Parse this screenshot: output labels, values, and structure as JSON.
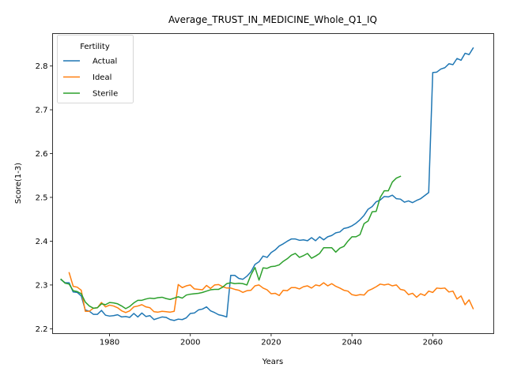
{
  "chart_data": {
    "type": "line",
    "title": "Average_TRUST_IN_MEDICINE_Whole_Q1_IQ",
    "xlabel": "Years",
    "ylabel": "Score(1-3)",
    "xlim": [
      1965.9,
      2075.1
    ],
    "ylim": [
      2.189,
      2.874
    ],
    "xticks": [
      1980,
      2000,
      2020,
      2040,
      2060
    ],
    "yticks": [
      2.2,
      2.3,
      2.4,
      2.5,
      2.6,
      2.7,
      2.8
    ],
    "xtick_labels": [
      "1980",
      "2000",
      "2020",
      "2040",
      "2060"
    ],
    "ytick_labels": [
      "2.2",
      "2.3",
      "2.4",
      "2.5",
      "2.6",
      "2.7",
      "2.8"
    ],
    "grid": false,
    "legend": {
      "title": "Fertility",
      "position": "top-left"
    },
    "series": [
      {
        "name": "Actual",
        "color": "#1f77b4",
        "x": [
          1968,
          1969,
          1970,
          1971,
          1972,
          1973,
          1974,
          1975,
          1976,
          1977,
          1978,
          1979,
          1980,
          1981,
          1982,
          1983,
          1984,
          1985,
          1986,
          1987,
          1988,
          1989,
          1990,
          1991,
          1992,
          1993,
          1994,
          1995,
          1996,
          1997,
          1998,
          1999,
          2000,
          2001,
          2002,
          2003,
          2004,
          2005,
          2006,
          2007,
          2008,
          2009,
          2010,
          2011,
          2012,
          2013,
          2014,
          2015,
          2016,
          2017,
          2018,
          2019,
          2020,
          2021,
          2022,
          2023,
          2024,
          2025,
          2026,
          2027,
          2028,
          2029,
          2030,
          2031,
          2032,
          2033,
          2034,
          2035,
          2036,
          2037,
          2038,
          2039,
          2040,
          2041,
          2042,
          2043,
          2044,
          2045,
          2046,
          2047,
          2048,
          2049,
          2050,
          2051,
          2052,
          2053,
          2054,
          2055,
          2056,
          2057,
          2058,
          2059,
          2060,
          2061,
          2062,
          2063,
          2064,
          2065,
          2066,
          2067,
          2068,
          2069,
          2070
        ],
        "values": [
          2.312,
          2.305,
          2.305,
          2.284,
          2.283,
          2.275,
          2.243,
          2.24,
          2.233,
          2.233,
          2.242,
          2.231,
          2.229,
          2.23,
          2.232,
          2.227,
          2.228,
          2.226,
          2.235,
          2.227,
          2.236,
          2.228,
          2.23,
          2.221,
          2.224,
          2.227,
          2.226,
          2.221,
          2.219,
          2.222,
          2.221,
          2.225,
          2.235,
          2.236,
          2.243,
          2.245,
          2.25,
          2.241,
          2.237,
          2.232,
          2.23,
          2.227,
          2.322,
          2.322,
          2.315,
          2.313,
          2.32,
          2.33,
          2.347,
          2.353,
          2.366,
          2.363,
          2.374,
          2.38,
          2.389,
          2.394,
          2.4,
          2.405,
          2.405,
          2.402,
          2.403,
          2.401,
          2.408,
          2.401,
          2.41,
          2.403,
          2.41,
          2.413,
          2.419,
          2.421,
          2.429,
          2.431,
          2.435,
          2.441,
          2.449,
          2.459,
          2.473,
          2.479,
          2.49,
          2.494,
          2.502,
          2.501,
          2.505,
          2.497,
          2.496,
          2.489,
          2.492,
          2.488,
          2.493,
          2.497,
          2.504,
          2.511,
          2.785,
          2.786,
          2.793,
          2.796,
          2.805,
          2.803,
          2.817,
          2.813,
          2.829,
          2.826,
          2.841
        ]
      },
      {
        "name": "Ideal",
        "color": "#ff7f0e",
        "x": [
          1970,
          1971,
          1972,
          1973,
          1974,
          1975,
          1976,
          1977,
          1978,
          1979,
          1980,
          1981,
          1982,
          1983,
          1984,
          1985,
          1986,
          1987,
          1988,
          1989,
          1990,
          1991,
          1992,
          1993,
          1994,
          1995,
          1996,
          1997,
          1998,
          1999,
          2000,
          2001,
          2002,
          2003,
          2004,
          2005,
          2006,
          2007,
          2008,
          2009,
          2010,
          2011,
          2012,
          2013,
          2014,
          2015,
          2016,
          2017,
          2018,
          2019,
          2020,
          2021,
          2022,
          2023,
          2024,
          2025,
          2026,
          2027,
          2028,
          2029,
          2030,
          2031,
          2032,
          2033,
          2034,
          2035,
          2036,
          2037,
          2038,
          2039,
          2040,
          2041,
          2042,
          2043,
          2044,
          2045,
          2046,
          2047,
          2048,
          2049,
          2050,
          2051,
          2052,
          2053,
          2054,
          2055,
          2056,
          2057,
          2058,
          2059,
          2060,
          2061,
          2062,
          2063,
          2064,
          2065,
          2066,
          2067,
          2068,
          2069,
          2070
        ],
        "values": [
          2.328,
          2.297,
          2.295,
          2.288,
          2.24,
          2.24,
          2.247,
          2.248,
          2.26,
          2.25,
          2.254,
          2.252,
          2.248,
          2.241,
          2.237,
          2.241,
          2.25,
          2.252,
          2.255,
          2.25,
          2.248,
          2.239,
          2.238,
          2.24,
          2.239,
          2.238,
          2.24,
          2.301,
          2.294,
          2.298,
          2.3,
          2.291,
          2.29,
          2.289,
          2.299,
          2.292,
          2.3,
          2.301,
          2.296,
          2.293,
          2.293,
          2.29,
          2.288,
          2.283,
          2.287,
          2.288,
          2.298,
          2.3,
          2.293,
          2.289,
          2.28,
          2.281,
          2.276,
          2.288,
          2.287,
          2.294,
          2.294,
          2.291,
          2.296,
          2.298,
          2.293,
          2.3,
          2.298,
          2.305,
          2.298,
          2.303,
          2.297,
          2.293,
          2.288,
          2.286,
          2.278,
          2.276,
          2.278,
          2.277,
          2.287,
          2.291,
          2.296,
          2.302,
          2.3,
          2.302,
          2.298,
          2.3,
          2.29,
          2.288,
          2.278,
          2.281,
          2.272,
          2.28,
          2.276,
          2.286,
          2.283,
          2.293,
          2.292,
          2.293,
          2.284,
          2.286,
          2.268,
          2.275,
          2.255,
          2.266,
          2.246
        ]
      },
      {
        "name": "Sterile",
        "color": "#2ca02c",
        "x": [
          1968,
          1969,
          1970,
          1971,
          1972,
          1973,
          1974,
          1975,
          1976,
          1977,
          1978,
          1979,
          1980,
          1981,
          1982,
          1983,
          1984,
          1985,
          1986,
          1987,
          1988,
          1989,
          1990,
          1991,
          1992,
          1993,
          1994,
          1995,
          1996,
          1997,
          1998,
          1999,
          2000,
          2001,
          2002,
          2003,
          2004,
          2005,
          2006,
          2007,
          2008,
          2009,
          2010,
          2011,
          2012,
          2013,
          2014,
          2015,
          2016,
          2017,
          2018,
          2019,
          2020,
          2021,
          2022,
          2023,
          2024,
          2025,
          2026,
          2027,
          2028,
          2029,
          2030,
          2031,
          2032,
          2033,
          2034,
          2035,
          2036,
          2037,
          2038,
          2039,
          2040,
          2041,
          2042,
          2043,
          2044,
          2045,
          2046,
          2047,
          2048,
          2049,
          2050,
          2051,
          2052
        ],
        "values": [
          2.313,
          2.304,
          2.302,
          2.287,
          2.285,
          2.28,
          2.261,
          2.252,
          2.247,
          2.248,
          2.257,
          2.255,
          2.26,
          2.259,
          2.257,
          2.252,
          2.246,
          2.251,
          2.259,
          2.265,
          2.265,
          2.268,
          2.27,
          2.269,
          2.271,
          2.272,
          2.269,
          2.267,
          2.27,
          2.273,
          2.27,
          2.277,
          2.279,
          2.28,
          2.281,
          2.283,
          2.286,
          2.289,
          2.29,
          2.29,
          2.295,
          2.303,
          2.305,
          2.303,
          2.304,
          2.303,
          2.3,
          2.323,
          2.34,
          2.311,
          2.339,
          2.338,
          2.342,
          2.343,
          2.346,
          2.354,
          2.36,
          2.368,
          2.372,
          2.363,
          2.367,
          2.372,
          2.361,
          2.366,
          2.372,
          2.385,
          2.385,
          2.385,
          2.375,
          2.384,
          2.388,
          2.4,
          2.41,
          2.41,
          2.415,
          2.44,
          2.446,
          2.467,
          2.468,
          2.5,
          2.515,
          2.515,
          2.535,
          2.544,
          2.548
        ]
      }
    ]
  }
}
